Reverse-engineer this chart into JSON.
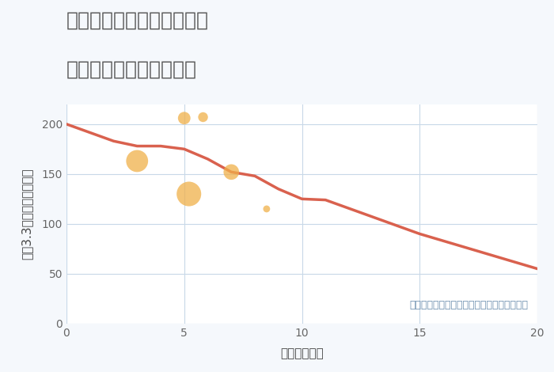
{
  "title_line1": "大阪府大阪市北区堂山町の",
  "title_line2": "駅距離別中古戸建て価格",
  "xlabel": "駅距離（分）",
  "ylabel": "坪（3.3㎡）単価（万円）",
  "annotation": "円の大きさは、取引のあった物件面積を示す",
  "line_x": [
    0,
    2,
    3,
    4,
    5,
    6,
    7,
    8,
    9,
    10,
    11,
    15,
    20
  ],
  "line_y": [
    200,
    183,
    178,
    178,
    175,
    165,
    152,
    148,
    135,
    125,
    124,
    90,
    55
  ],
  "line_color": "#d9614e",
  "scatter_x": [
    3,
    5,
    5.8,
    7,
    8.5,
    5.2
  ],
  "scatter_y": [
    163,
    206,
    207,
    152,
    115,
    130
  ],
  "scatter_sizes": [
    400,
    130,
    80,
    200,
    40,
    500
  ],
  "scatter_color": "#f0b04a",
  "scatter_alpha": 0.75,
  "xlim": [
    0,
    20
  ],
  "ylim": [
    0,
    220
  ],
  "xticks": [
    0,
    5,
    10,
    15,
    20
  ],
  "yticks": [
    0,
    50,
    100,
    150,
    200
  ],
  "grid_color": "#c8d8e8",
  "bg_color": "#f5f8fc",
  "plot_bg_color": "#ffffff",
  "title_color": "#555555",
  "annotation_color": "#6b8eae",
  "title_fontsize": 18,
  "label_fontsize": 11,
  "tick_fontsize": 10,
  "annotation_fontsize": 9
}
